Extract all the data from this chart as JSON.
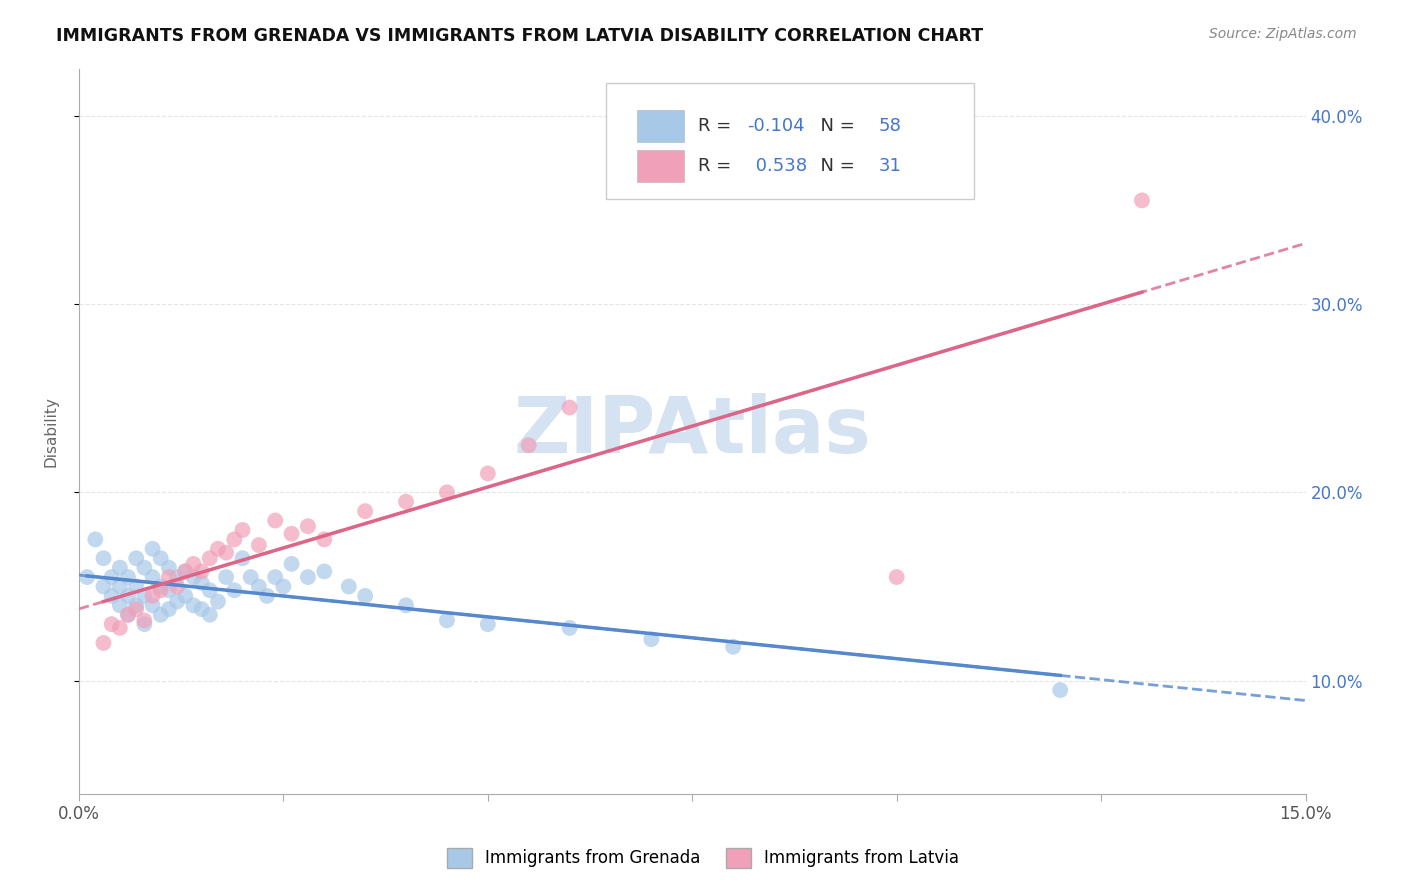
{
  "title": "IMMIGRANTS FROM GRENADA VS IMMIGRANTS FROM LATVIA DISABILITY CORRELATION CHART",
  "source": "Source: ZipAtlas.com",
  "ylabel": "Disability",
  "xlim": [
    0.0,
    0.15
  ],
  "ylim": [
    0.04,
    0.425
  ],
  "xticks": [
    0.0,
    0.025,
    0.05,
    0.075,
    0.1,
    0.125,
    0.15
  ],
  "xtick_labels": [
    "0.0%",
    "",
    "",
    "",
    "",
    "",
    "15.0%"
  ],
  "yticks": [
    0.1,
    0.2,
    0.3,
    0.4
  ],
  "ytick_labels": [
    "10.0%",
    "20.0%",
    "30.0%",
    "40.0%"
  ],
  "grenada_R": -0.104,
  "grenada_N": 58,
  "latvia_R": 0.538,
  "latvia_N": 31,
  "grenada_color": "#a8c8e8",
  "latvia_color": "#f0a0b8",
  "grenada_line_color": "#5588cc",
  "latvia_line_color": "#dd6688",
  "watermark_color": "#d0dff0",
  "grenada_x": [
    0.001,
    0.002,
    0.003,
    0.003,
    0.004,
    0.004,
    0.005,
    0.005,
    0.005,
    0.006,
    0.006,
    0.006,
    0.007,
    0.007,
    0.007,
    0.008,
    0.008,
    0.008,
    0.009,
    0.009,
    0.009,
    0.01,
    0.01,
    0.01,
    0.011,
    0.011,
    0.011,
    0.012,
    0.012,
    0.013,
    0.013,
    0.014,
    0.014,
    0.015,
    0.015,
    0.016,
    0.016,
    0.017,
    0.018,
    0.019,
    0.02,
    0.021,
    0.022,
    0.023,
    0.024,
    0.025,
    0.026,
    0.028,
    0.03,
    0.033,
    0.035,
    0.04,
    0.045,
    0.05,
    0.06,
    0.07,
    0.08,
    0.12
  ],
  "grenada_y": [
    0.155,
    0.175,
    0.15,
    0.165,
    0.145,
    0.155,
    0.16,
    0.15,
    0.14,
    0.155,
    0.145,
    0.135,
    0.165,
    0.15,
    0.14,
    0.16,
    0.145,
    0.13,
    0.17,
    0.155,
    0.14,
    0.165,
    0.15,
    0.135,
    0.16,
    0.148,
    0.138,
    0.155,
    0.142,
    0.158,
    0.145,
    0.155,
    0.14,
    0.152,
    0.138,
    0.148,
    0.135,
    0.142,
    0.155,
    0.148,
    0.165,
    0.155,
    0.15,
    0.145,
    0.155,
    0.15,
    0.162,
    0.155,
    0.158,
    0.15,
    0.145,
    0.14,
    0.132,
    0.13,
    0.128,
    0.122,
    0.118,
    0.095
  ],
  "latvia_x": [
    0.003,
    0.004,
    0.005,
    0.006,
    0.007,
    0.008,
    0.009,
    0.01,
    0.011,
    0.012,
    0.013,
    0.014,
    0.015,
    0.016,
    0.017,
    0.018,
    0.019,
    0.02,
    0.022,
    0.024,
    0.026,
    0.028,
    0.03,
    0.035,
    0.04,
    0.045,
    0.05,
    0.055,
    0.06,
    0.1,
    0.13
  ],
  "latvia_y": [
    0.12,
    0.13,
    0.128,
    0.135,
    0.138,
    0.132,
    0.145,
    0.148,
    0.155,
    0.15,
    0.158,
    0.162,
    0.158,
    0.165,
    0.17,
    0.168,
    0.175,
    0.18,
    0.172,
    0.185,
    0.178,
    0.182,
    0.175,
    0.19,
    0.195,
    0.2,
    0.21,
    0.225,
    0.245,
    0.155,
    0.355
  ]
}
